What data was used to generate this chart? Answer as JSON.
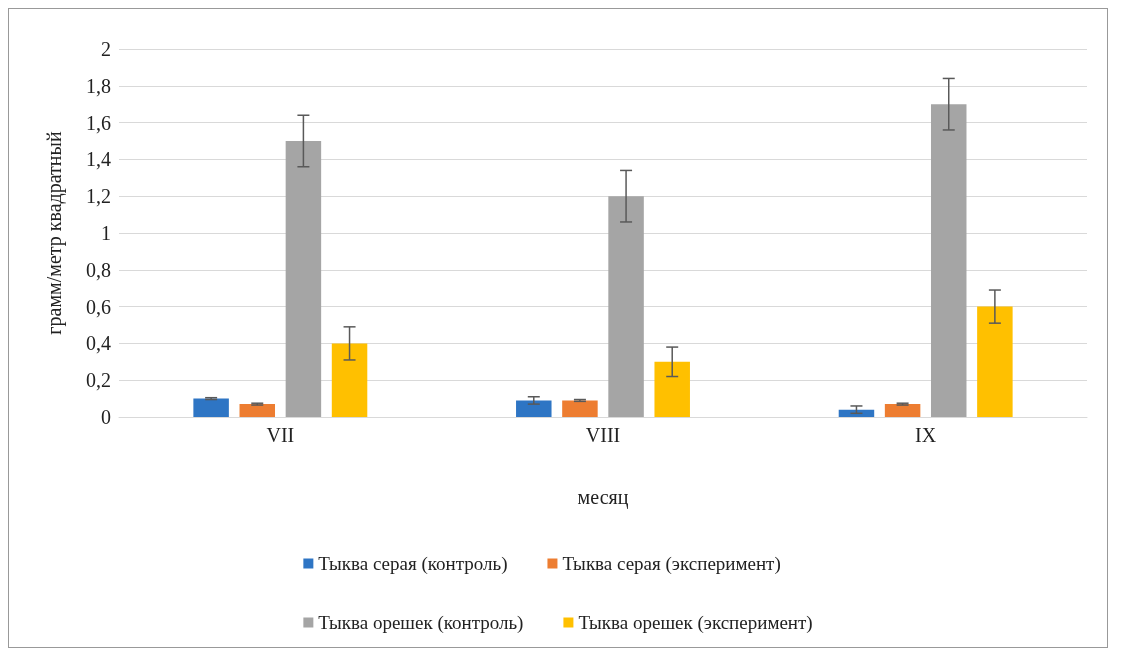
{
  "chart_data": {
    "type": "bar",
    "xlabel": "месяц",
    "ylabel": "грамм/метр квадратный",
    "categories": [
      "VII",
      "VIII",
      "IX"
    ],
    "series": [
      {
        "name": "Тыква серая (контроль)",
        "color": "#2e75c4",
        "values": [
          0.1,
          0.09,
          0.04
        ],
        "errors": [
          0.005,
          0.02,
          0.02
        ]
      },
      {
        "name": "Тыква серая (эксперимент)",
        "color": "#ed7d31",
        "values": [
          0.07,
          0.09,
          0.07
        ],
        "errors": [
          0.005,
          0.005,
          0.005
        ]
      },
      {
        "name": "Тыква орешек (контроль)",
        "color": "#a5a5a5",
        "values": [
          1.5,
          1.2,
          1.7
        ],
        "errors": [
          0.14,
          0.14,
          0.14
        ]
      },
      {
        "name": "Тыква орешек (эксперимент)",
        "color": "#ffc000",
        "values": [
          0.4,
          0.3,
          0.6
        ],
        "errors": [
          0.09,
          0.08,
          0.09
        ]
      }
    ],
    "ylim": [
      0,
      2
    ],
    "yticks": [
      0,
      {
        "value": 0.2,
        "label": "0,2"
      },
      {
        "value": 0.4,
        "label": "0,4"
      },
      {
        "value": 0.6,
        "label": "0,6"
      },
      {
        "value": 0.8,
        "label": "0,8"
      },
      1,
      {
        "value": 1.2,
        "label": "1,2"
      },
      {
        "value": 1.4,
        "label": "1,4"
      },
      {
        "value": 1.6,
        "label": "1,6"
      },
      {
        "value": 1.8,
        "label": "1,8"
      },
      2
    ],
    "grid": "y",
    "legend": "bottom"
  }
}
